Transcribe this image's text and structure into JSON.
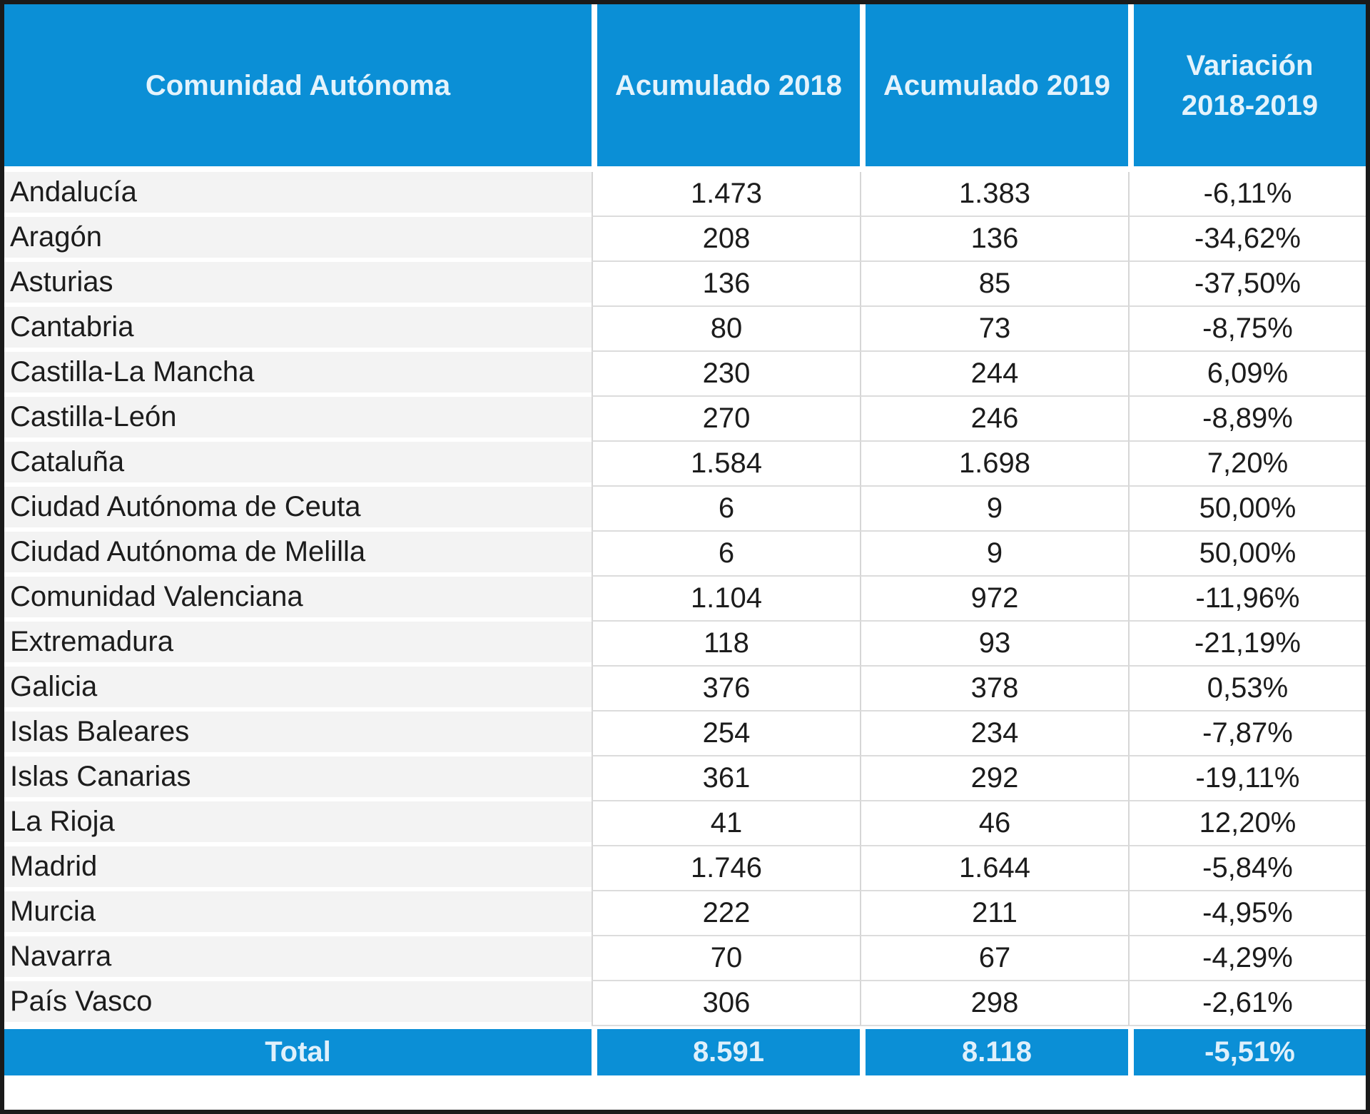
{
  "table": {
    "headers": [
      "Comunidad Autónoma",
      "Acumulado 2018",
      "Acumulado 2019",
      "Variación",
      "2018-2019"
    ],
    "rows": [
      [
        "Andalucía",
        "1.473",
        "1.383",
        "-6,11%"
      ],
      [
        "Aragón",
        "208",
        "136",
        "-34,62%"
      ],
      [
        "Asturias",
        "136",
        "85",
        "-37,50%"
      ],
      [
        "Cantabria",
        "80",
        "73",
        "-8,75%"
      ],
      [
        "Castilla-La Mancha",
        "230",
        "244",
        "6,09%"
      ],
      [
        "Castilla-León",
        "270",
        "246",
        "-8,89%"
      ],
      [
        "Cataluña",
        "1.584",
        "1.698",
        "7,20%"
      ],
      [
        "Ciudad Autónoma de Ceuta",
        "6",
        "9",
        "50,00%"
      ],
      [
        "Ciudad Autónoma de Melilla",
        "6",
        "9",
        "50,00%"
      ],
      [
        "Comunidad Valenciana",
        "1.104",
        "972",
        "-11,96%"
      ],
      [
        "Extremadura",
        "118",
        "93",
        "-21,19%"
      ],
      [
        "Galicia",
        "376",
        "378",
        "0,53%"
      ],
      [
        "Islas Baleares",
        "254",
        "234",
        "-7,87%"
      ],
      [
        "Islas Canarias",
        "361",
        "292",
        "-19,11%"
      ],
      [
        "La Rioja",
        "41",
        "46",
        "12,20%"
      ],
      [
        "Madrid",
        "1.746",
        "1.644",
        "-5,84%"
      ],
      [
        "Murcia",
        "222",
        "211",
        "-4,95%"
      ],
      [
        "Navarra",
        "70",
        "67",
        "-4,29%"
      ],
      [
        "País Vasco",
        "306",
        "298",
        "-2,61%"
      ]
    ],
    "total": [
      "Total",
      "8.591",
      "8.118",
      "-5,51%"
    ]
  }
}
